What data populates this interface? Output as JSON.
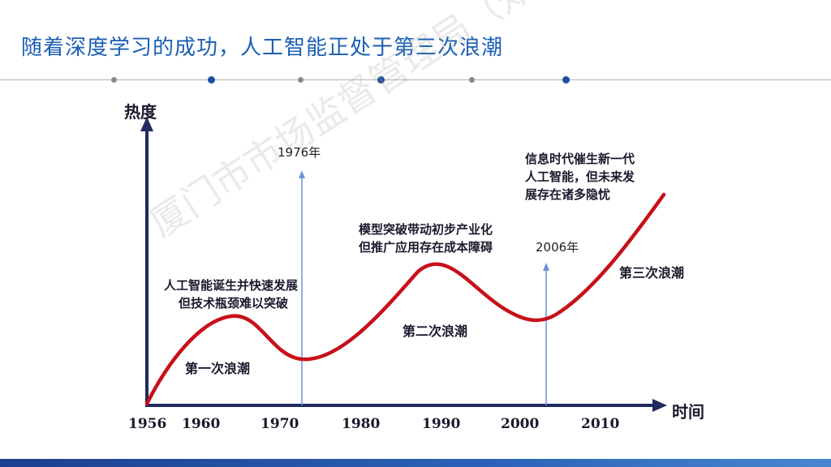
{
  "title": "随着深度学习的成功，人工智能正处于第三次浪潮",
  "watermark": "厦门市市场监督管理局（知识产权局）",
  "colors": {
    "title": "#1a5fb4",
    "curve": "#c8101a",
    "axis": "#1f2a5c",
    "marker_line": "#6f93d6"
  },
  "axes": {
    "y_label": "热度",
    "x_label": "时间"
  },
  "years": [
    "1956",
    "1960",
    "1970",
    "1980",
    "1990",
    "2000",
    "2010"
  ],
  "markers": [
    {
      "label": "1976年"
    },
    {
      "label": "2006年"
    }
  ],
  "waves": {
    "first": "第一次浪潮",
    "second": "第二次浪潮",
    "third": "第三次浪潮"
  },
  "notes": {
    "first_line1": "人工智能诞生并快速发展",
    "first_line2": "但技术瓶颈难以突破",
    "second_line1": "模型突破带动初步产业化",
    "second_line2": "但推广应用存在成本障碍",
    "third_line1": "信息时代催生新一代",
    "third_line2": "人工智能，但未来发",
    "third_line3": "展存在诸多隐忧"
  }
}
